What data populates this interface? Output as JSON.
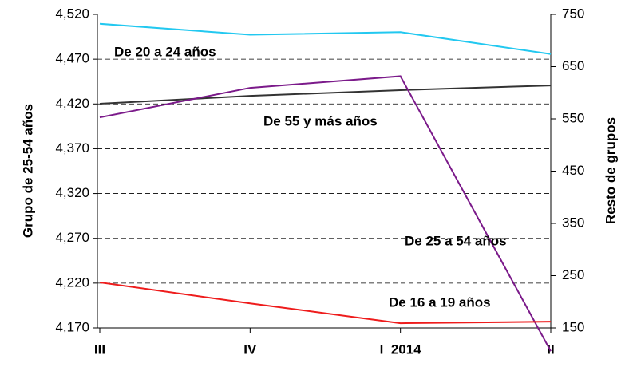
{
  "chart_data": {
    "type": "line",
    "categories": [
      "III",
      "IV",
      "I  2014",
      "II"
    ],
    "y_label": "Grupo de 25-54 años",
    "y2_label": "Resto de grupos",
    "ylim": [
      4170,
      4520
    ],
    "yticks": [
      {
        "value": 4170,
        "label": "4,170"
      },
      {
        "value": 4220,
        "label": "4,220"
      },
      {
        "value": 4270,
        "label": "4,270"
      },
      {
        "value": 4320,
        "label": "4,320"
      },
      {
        "value": 4370,
        "label": "4,370"
      },
      {
        "value": 4420,
        "label": "4,420"
      },
      {
        "value": 4470,
        "label": "4,470"
      },
      {
        "value": 4520,
        "label": "4,520"
      }
    ],
    "y2lim": [
      150,
      750
    ],
    "y2ticks": [
      150,
      250,
      350,
      450,
      550,
      650,
      750
    ],
    "grid": true,
    "series": [
      {
        "name": "De 20 a 24 años",
        "color": "#22c8f0",
        "axis": "y2",
        "values": [
          732,
          711,
          716,
          674
        ]
      },
      {
        "name": "De 55 y más años",
        "color": "#333333",
        "axis": "y2",
        "values": [
          579,
          594,
          605,
          614
        ]
      },
      {
        "name": "De 25 a 54 años",
        "color": "#7b1a8a",
        "axis": "y",
        "values": [
          4405,
          4438,
          4451,
          4144
        ]
      },
      {
        "name": "De 16 a 19 años",
        "color": "#ee1c1c",
        "axis": "y2",
        "values": [
          237,
          197,
          159,
          162
        ]
      }
    ]
  }
}
